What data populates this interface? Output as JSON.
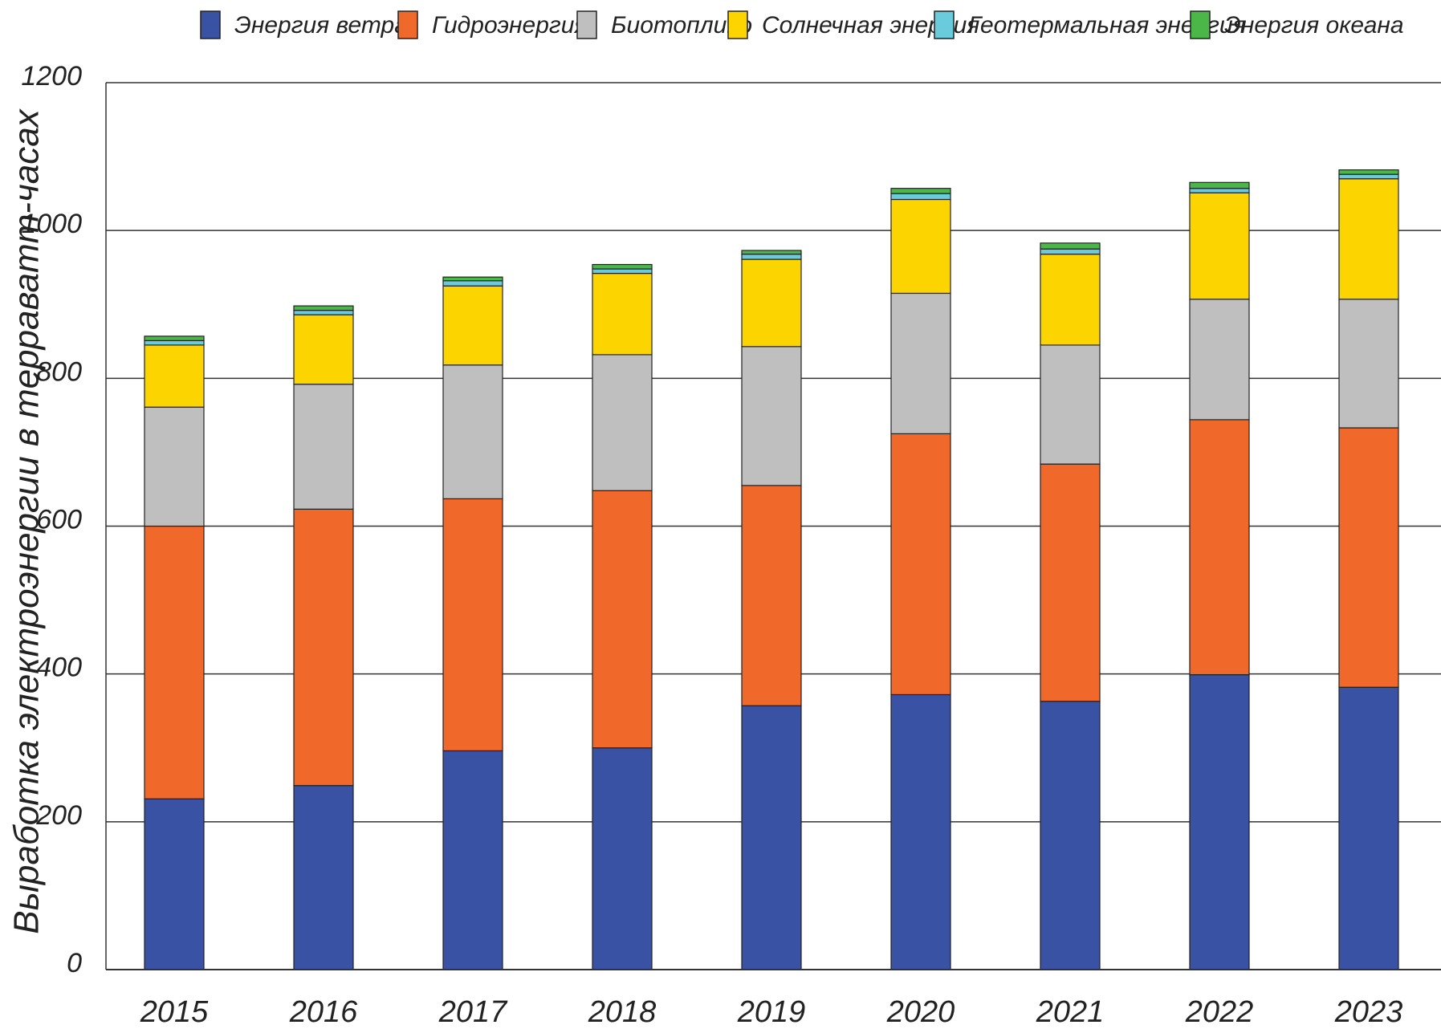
{
  "chart_data": {
    "type": "stacked-bar",
    "y_label": "Выработка электроэнергии в терраватт-часах",
    "categories": [
      "2015",
      "2016",
      "2017",
      "2018",
      "2019",
      "2020",
      "2021",
      "2022",
      "2023"
    ],
    "series": [
      {
        "name": "Энергия ветра",
        "color": "#3a52a4",
        "values": [
          231,
          249,
          296,
          300,
          357,
          372,
          363,
          399,
          382
        ]
      },
      {
        "name": "Гидроэнергия",
        "color": "#f0682a",
        "values": [
          369,
          374,
          341,
          348,
          298,
          353,
          321,
          345,
          351
        ]
      },
      {
        "name": "Биотопливо",
        "color": "#bfbfbf",
        "values": [
          161,
          169,
          181,
          184,
          188,
          190,
          161,
          163,
          174
        ]
      },
      {
        "name": "Солнечная энергия",
        "color": "#fcd500",
        "values": [
          84,
          94,
          107,
          110,
          118,
          127,
          123,
          144,
          163
        ]
      },
      {
        "name": "Геотермальная энергия",
        "color": "#6acbdc",
        "values": [
          6,
          6,
          7,
          6,
          7,
          8,
          7,
          6,
          6
        ]
      },
      {
        "name": "Энергия океана",
        "color": "#4bb749",
        "values": [
          6,
          6,
          5,
          6,
          5,
          7,
          8,
          8,
          6
        ]
      }
    ],
    "ylim": [
      0,
      1200
    ],
    "yticks": [
      0,
      200,
      400,
      600,
      800,
      1000,
      1200
    ],
    "grid": true
  }
}
